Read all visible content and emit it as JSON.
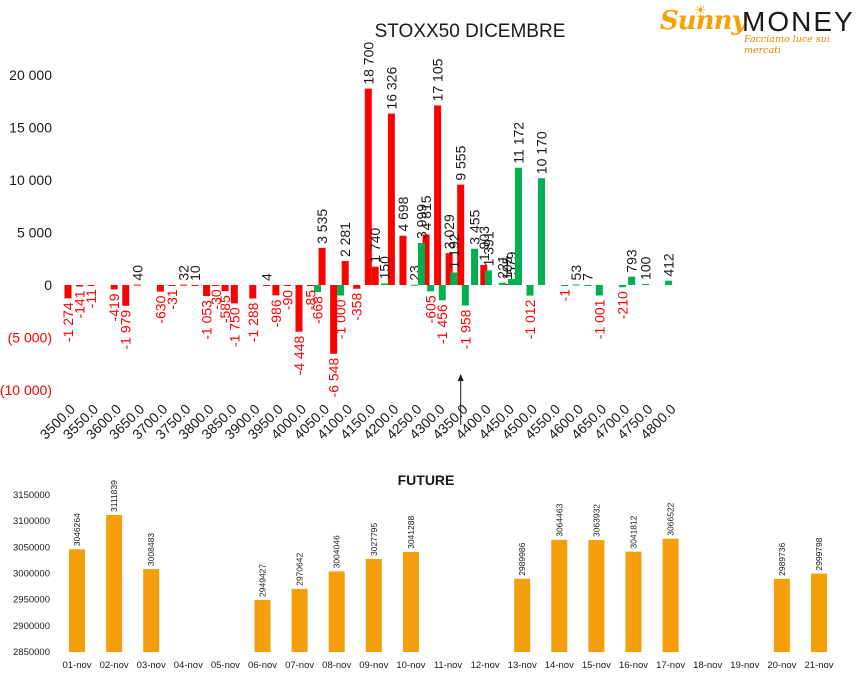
{
  "logo": {
    "word1": "Sunny",
    "word2": "MONEY",
    "tagline": "Facciamo luce sui mercati",
    "sun": "☀"
  },
  "chart_data": [
    {
      "type": "bar",
      "title": "STOXX50 DICEMBRE",
      "ylim": [
        -10000,
        20000
      ],
      "yticks": [
        {
          "v": 20000,
          "label": "20 000"
        },
        {
          "v": 15000,
          "label": "15 000"
        },
        {
          "v": 10000,
          "label": "10 000"
        },
        {
          "v": 5000,
          "label": "5 000"
        },
        {
          "v": 0,
          "label": "0"
        },
        {
          "v": -5000,
          "label": "(5 000)"
        },
        {
          "v": -10000,
          "label": "(10 000)"
        }
      ],
      "categories": [
        "3500.0",
        "3550.0",
        "3600.0",
        "3650.0",
        "3700.0",
        "3750.0",
        "3800.0",
        "3850.0",
        "3900.0",
        "3950.0",
        "4000.0",
        "4050.0",
        "4100.0",
        "4150.0",
        "4200.0",
        "4250.0",
        "4300.0",
        "4350.0",
        "4400.0",
        "4450.0",
        "4500.0",
        "4550.0",
        "4600.0",
        "4650.0",
        "4700.0",
        "4750.0",
        "4800.0"
      ],
      "series": [
        {
          "color": "#ff0000",
          "points": [
            {
              "x": 3500,
              "y": -1274,
              "label": "-1 274"
            },
            {
              "x": 3525,
              "y": -141,
              "label": "-141"
            },
            {
              "x": 3550,
              "y": -11,
              "label": "-11"
            },
            {
              "x": 3600,
              "y": -419,
              "label": "-419"
            },
            {
              "x": 3625,
              "y": -1979,
              "label": "-1 979"
            },
            {
              "x": 3650,
              "y": 40,
              "label": "40"
            },
            {
              "x": 3700,
              "y": -630,
              "label": "-630"
            },
            {
              "x": 3725,
              "y": -31,
              "label": "-31"
            },
            {
              "x": 3750,
              "y": 32,
              "label": "32"
            },
            {
              "x": 3775,
              "y": 10,
              "label": "10"
            },
            {
              "x": 3800,
              "y": -1053,
              "label": "-1 053"
            },
            {
              "x": 3820,
              "y": -30,
              "label": "-30"
            },
            {
              "x": 3840,
              "y": -585,
              "label": "-585"
            },
            {
              "x": 3860,
              "y": -1750,
              "label": "-1 750"
            },
            {
              "x": 3900,
              "y": -1288,
              "label": "-1 288"
            },
            {
              "x": 3930,
              "y": 4,
              "label": "4"
            },
            {
              "x": 3950,
              "y": -986,
              "label": "-986"
            },
            {
              "x": 3975,
              "y": -90,
              "label": "-90"
            },
            {
              "x": 4000,
              "y": -4448,
              "label": "-4 448"
            },
            {
              "x": 4025,
              "y": -85,
              "label": "-85"
            },
            {
              "x": 4050,
              "y": 3535,
              "label": "3 535"
            },
            {
              "x": 4075,
              "y": -6548,
              "label": "-6 548"
            },
            {
              "x": 4100,
              "y": 2281,
              "label": "2 281"
            },
            {
              "x": 4125,
              "y": -358,
              "label": "-358"
            },
            {
              "x": 4150,
              "y": 18700,
              "label": "18 700"
            },
            {
              "x": 4165,
              "y": 1740,
              "label": "1 740"
            },
            {
              "x": 4200,
              "y": 16326,
              "label": "16 326"
            },
            {
              "x": 4225,
              "y": 4698,
              "label": "4 698"
            },
            {
              "x": 4275,
              "y": 4815,
              "label": "4 815"
            },
            {
              "x": 4300,
              "y": 17105,
              "label": "17 105"
            },
            {
              "x": 4325,
              "y": 3029,
              "label": "3 029"
            },
            {
              "x": 4350,
              "y": 9555,
              "label": "9 555"
            },
            {
              "x": 4400,
              "y": 1903,
              "label": "1 903"
            },
            {
              "x": 4450,
              "y": 105,
              "label": "105"
            }
          ]
        },
        {
          "color": "#00b050",
          "points": [
            {
              "x": 4040,
              "y": -668,
              "label": "-668"
            },
            {
              "x": 4090,
              "y": -1000,
              "label": "-1 000"
            },
            {
              "x": 4185,
              "y": 150,
              "label": "150"
            },
            {
              "x": 4250,
              "y": 23,
              "label": "23"
            },
            {
              "x": 4265,
              "y": 3999,
              "label": "3 999"
            },
            {
              "x": 4285,
              "y": -605,
              "label": "-605"
            },
            {
              "x": 4310,
              "y": -1456,
              "label": "-1 456"
            },
            {
              "x": 4335,
              "y": 1192,
              "label": "1 192"
            },
            {
              "x": 4360,
              "y": -1958,
              "label": "-1 958"
            },
            {
              "x": 4380,
              "y": 3455,
              "label": "3 455"
            },
            {
              "x": 4410,
              "y": 1391,
              "label": "1 391"
            },
            {
              "x": 4440,
              "y": 221,
              "label": "221"
            },
            {
              "x": 4460,
              "y": 579,
              "label": "579"
            },
            {
              "x": 4475,
              "y": 11172,
              "label": "11 172"
            },
            {
              "x": 4500,
              "y": -1012,
              "label": "-1 012"
            },
            {
              "x": 4525,
              "y": 10170,
              "label": "10 170"
            },
            {
              "x": 4575,
              "y": -1,
              "label": "-1"
            },
            {
              "x": 4600,
              "y": 53,
              "label": "53"
            },
            {
              "x": 4625,
              "y": 7,
              "label": "7"
            },
            {
              "x": 4650,
              "y": -1001,
              "label": "-1 001"
            },
            {
              "x": 4700,
              "y": -210,
              "label": "-210"
            },
            {
              "x": 4720,
              "y": 793,
              "label": "793"
            },
            {
              "x": 4750,
              "y": 100,
              "label": "100"
            },
            {
              "x": 4800,
              "y": 412,
              "label": "412"
            }
          ]
        }
      ],
      "marker": {
        "x": 4350,
        "label": ""
      }
    },
    {
      "type": "bar",
      "title": "FUTURE",
      "ylim": [
        2850000,
        3150000
      ],
      "yticks": [
        {
          "v": 3150000,
          "label": "3150000"
        },
        {
          "v": 3100000,
          "label": "3100000"
        },
        {
          "v": 3050000,
          "label": "3050000"
        },
        {
          "v": 3000000,
          "label": "3000000"
        },
        {
          "v": 2950000,
          "label": "2950000"
        },
        {
          "v": 2900000,
          "label": "2900000"
        },
        {
          "v": 2850000,
          "label": "2850000"
        }
      ],
      "color": "#f59e0b",
      "categories": [
        "01-nov",
        "02-nov",
        "03-nov",
        "04-nov",
        "05-nov",
        "06-nov",
        "07-nov",
        "08-nov",
        "09-nov",
        "10-nov",
        "11-nov",
        "12-nov",
        "13-nov",
        "14-nov",
        "15-nov",
        "16-nov",
        "17-nov",
        "18-nov",
        "19-nov",
        "20-nov",
        "21-nov"
      ],
      "values": [
        3046264,
        3111839,
        3008483,
        null,
        null,
        2949427,
        2970642,
        3004046,
        3027795,
        3041288,
        null,
        null,
        2989986,
        3064463,
        3063932,
        3041812,
        3066522,
        null,
        null,
        2989736,
        2999798
      ],
      "value_labels": [
        "3046264",
        "3111839",
        "3008483",
        "",
        "",
        "2949427",
        "2970642",
        "3004046",
        "3027795",
        "3041288",
        "",
        "",
        "2989986",
        "3064463",
        "3063932",
        "3041812",
        "3066522",
        "",
        "",
        "2989736",
        "2999798"
      ]
    }
  ]
}
